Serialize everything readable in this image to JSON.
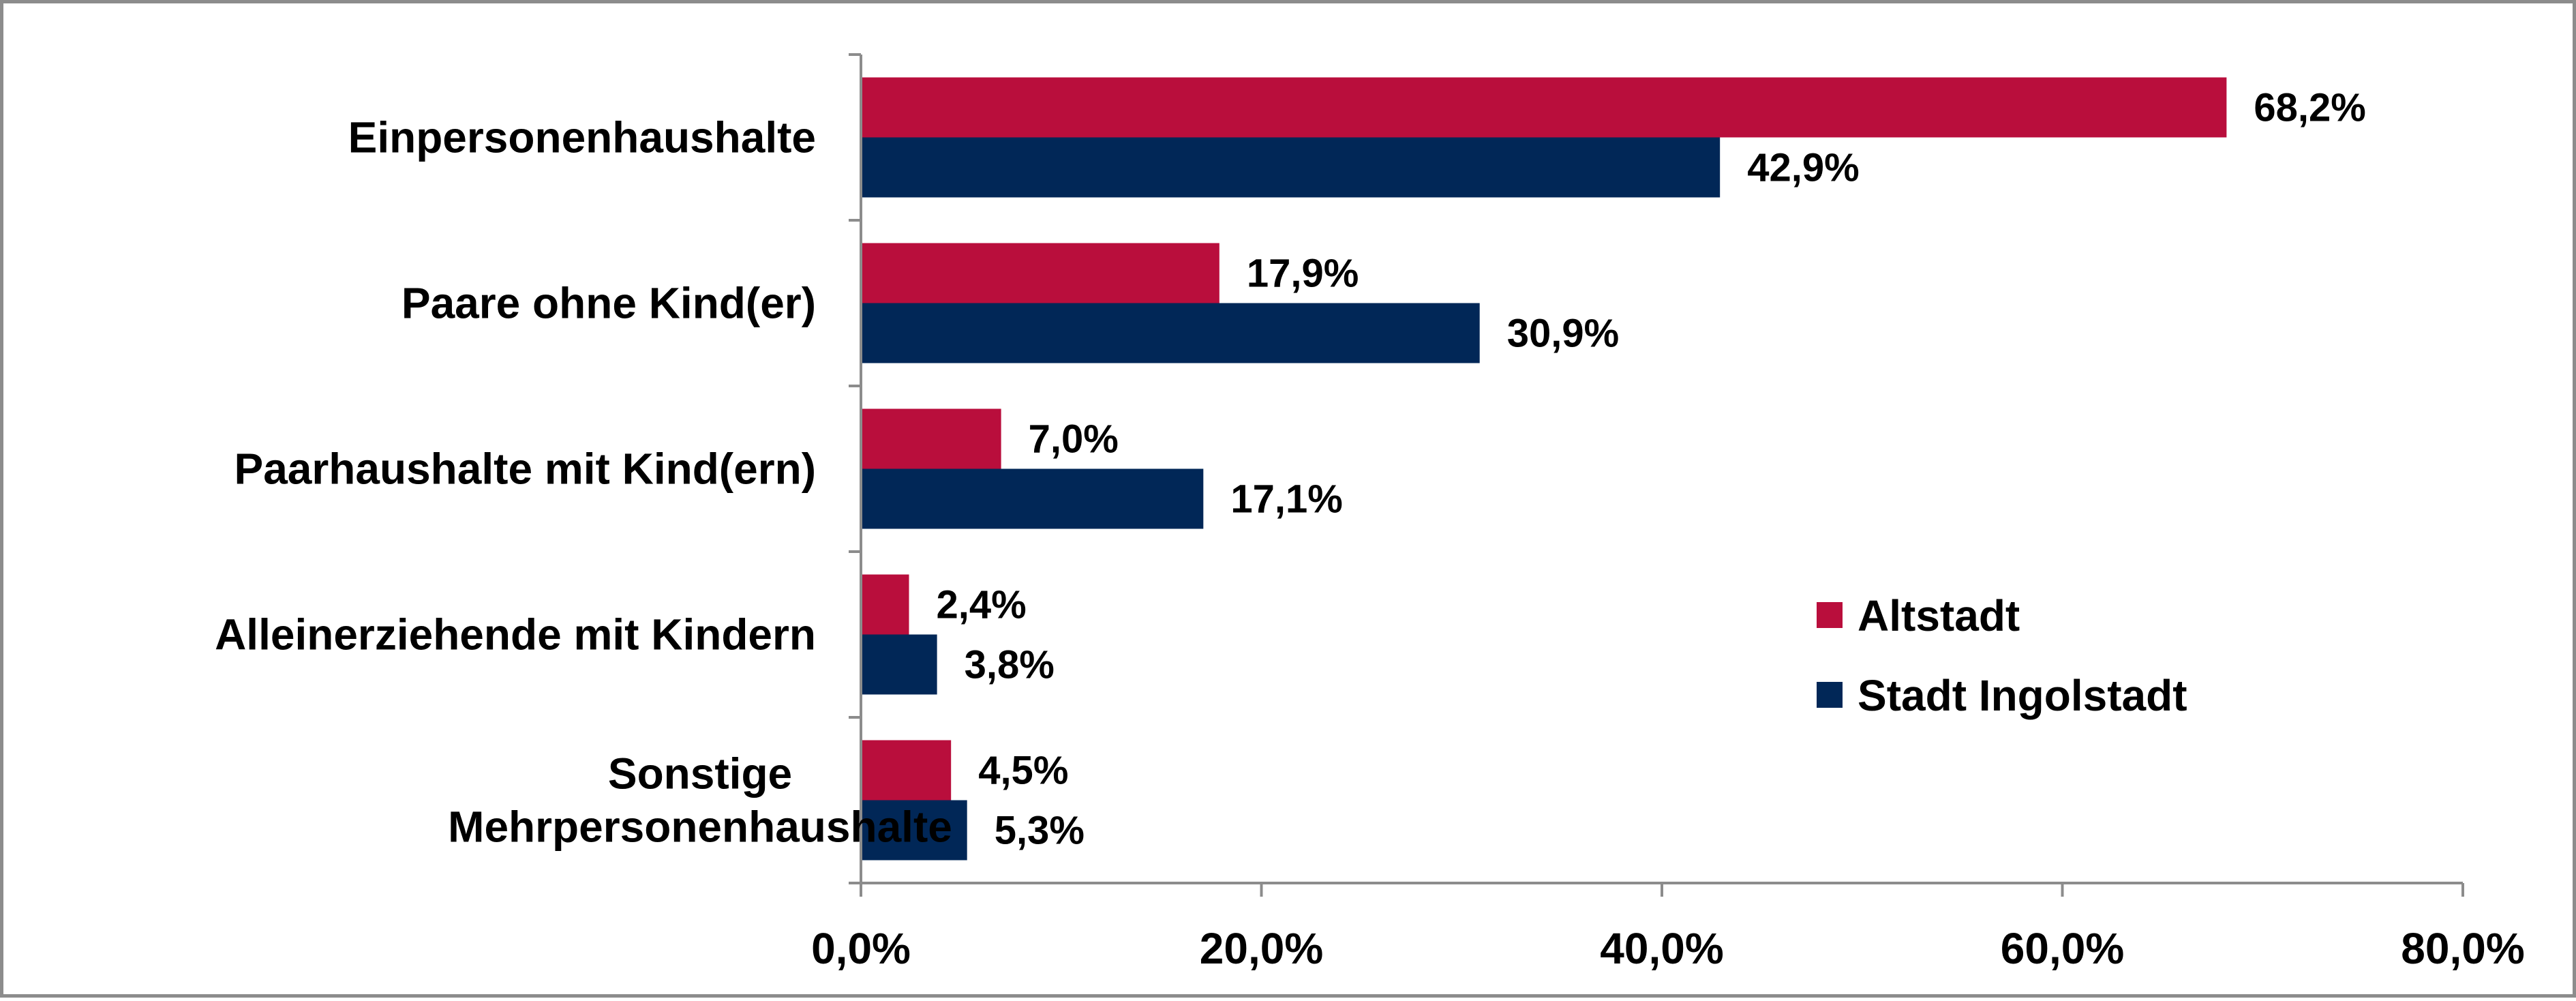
{
  "chart_data": {
    "type": "bar",
    "orientation": "horizontal",
    "categories": [
      [
        "Einpersonenhaushalte"
      ],
      [
        "Paare ohne Kind(er)"
      ],
      [
        "Paarhaushalte mit Kind(ern)"
      ],
      [
        "Alleinerziehende mit Kindern"
      ],
      [
        "Sonstige",
        "Mehrpersonenhaushalte"
      ]
    ],
    "series": [
      {
        "name": "Altstadt",
        "color": "#b90e3c",
        "values": [
          68.2,
          17.9,
          7.0,
          2.4,
          4.5
        ],
        "labels": [
          "68,2%",
          "17,9%",
          "7,0%",
          "2,4%",
          "4,5%"
        ]
      },
      {
        "name": "Stadt Ingolstadt",
        "color": "#012757",
        "values": [
          42.9,
          30.9,
          17.1,
          3.8,
          5.3
        ],
        "labels": [
          "42,9%",
          "30,9%",
          "17,1%",
          "3,8%",
          "5,3%"
        ]
      }
    ],
    "xlim": [
      0,
      80
    ],
    "xticks": [
      0,
      20,
      40,
      60,
      80
    ],
    "xtick_labels": [
      "0,0%",
      "20,0%",
      "40,0%",
      "60,0%",
      "80,0%"
    ],
    "legend_position": "right",
    "grid": false,
    "title": "",
    "xlabel": "",
    "ylabel": ""
  }
}
